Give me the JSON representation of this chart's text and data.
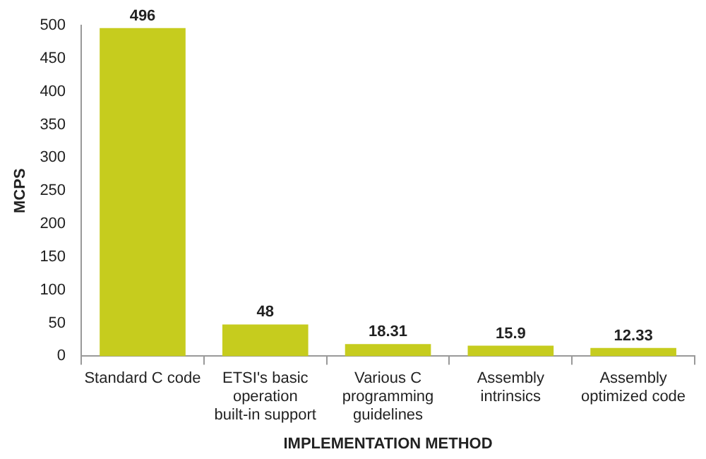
{
  "chart_data": {
    "type": "bar",
    "xlabel": "IMPLEMENTATION METHOD",
    "ylabel": "MCPS",
    "categories": [
      "Standard C code",
      "ETSI's basic operation built-in support",
      "Various C programming guidelines",
      "Assembly intrinsics",
      "Assembly optimized code"
    ],
    "values": [
      496,
      48,
      18.31,
      15.9,
      12.33
    ],
    "color": "#c6cc1e",
    "ylim": [
      0,
      500
    ],
    "yticks": [
      0,
      50,
      100,
      150,
      200,
      250,
      300,
      350,
      400,
      450,
      500
    ],
    "grid": false,
    "data_labels": true
  }
}
